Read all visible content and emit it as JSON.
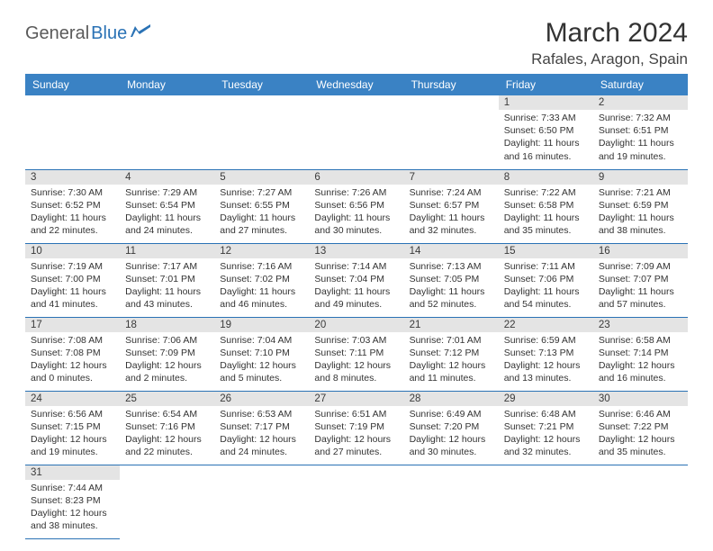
{
  "logo": {
    "text1": "General",
    "text2": "Blue"
  },
  "title": "March 2024",
  "location": "Rafales, Aragon, Spain",
  "colors": {
    "header_bg": "#3a82c4",
    "header_fg": "#ffffff",
    "daynum_bg": "#e4e4e4",
    "row_border": "#2a72b5",
    "logo_gray": "#5a5a5a",
    "logo_blue": "#2a72b5"
  },
  "weekdays": [
    "Sunday",
    "Monday",
    "Tuesday",
    "Wednesday",
    "Thursday",
    "Friday",
    "Saturday"
  ],
  "weeks": [
    [
      null,
      null,
      null,
      null,
      null,
      {
        "d": "1",
        "sunrise": "7:33 AM",
        "sunset": "6:50 PM",
        "dayh": 11,
        "daym": 16
      },
      {
        "d": "2",
        "sunrise": "7:32 AM",
        "sunset": "6:51 PM",
        "dayh": 11,
        "daym": 19
      }
    ],
    [
      {
        "d": "3",
        "sunrise": "7:30 AM",
        "sunset": "6:52 PM",
        "dayh": 11,
        "daym": 22
      },
      {
        "d": "4",
        "sunrise": "7:29 AM",
        "sunset": "6:54 PM",
        "dayh": 11,
        "daym": 24
      },
      {
        "d": "5",
        "sunrise": "7:27 AM",
        "sunset": "6:55 PM",
        "dayh": 11,
        "daym": 27
      },
      {
        "d": "6",
        "sunrise": "7:26 AM",
        "sunset": "6:56 PM",
        "dayh": 11,
        "daym": 30
      },
      {
        "d": "7",
        "sunrise": "7:24 AM",
        "sunset": "6:57 PM",
        "dayh": 11,
        "daym": 32
      },
      {
        "d": "8",
        "sunrise": "7:22 AM",
        "sunset": "6:58 PM",
        "dayh": 11,
        "daym": 35
      },
      {
        "d": "9",
        "sunrise": "7:21 AM",
        "sunset": "6:59 PM",
        "dayh": 11,
        "daym": 38
      }
    ],
    [
      {
        "d": "10",
        "sunrise": "7:19 AM",
        "sunset": "7:00 PM",
        "dayh": 11,
        "daym": 41
      },
      {
        "d": "11",
        "sunrise": "7:17 AM",
        "sunset": "7:01 PM",
        "dayh": 11,
        "daym": 43
      },
      {
        "d": "12",
        "sunrise": "7:16 AM",
        "sunset": "7:02 PM",
        "dayh": 11,
        "daym": 46
      },
      {
        "d": "13",
        "sunrise": "7:14 AM",
        "sunset": "7:04 PM",
        "dayh": 11,
        "daym": 49
      },
      {
        "d": "14",
        "sunrise": "7:13 AM",
        "sunset": "7:05 PM",
        "dayh": 11,
        "daym": 52
      },
      {
        "d": "15",
        "sunrise": "7:11 AM",
        "sunset": "7:06 PM",
        "dayh": 11,
        "daym": 54
      },
      {
        "d": "16",
        "sunrise": "7:09 AM",
        "sunset": "7:07 PM",
        "dayh": 11,
        "daym": 57
      }
    ],
    [
      {
        "d": "17",
        "sunrise": "7:08 AM",
        "sunset": "7:08 PM",
        "dayh": 12,
        "daym": 0
      },
      {
        "d": "18",
        "sunrise": "7:06 AM",
        "sunset": "7:09 PM",
        "dayh": 12,
        "daym": 2
      },
      {
        "d": "19",
        "sunrise": "7:04 AM",
        "sunset": "7:10 PM",
        "dayh": 12,
        "daym": 5
      },
      {
        "d": "20",
        "sunrise": "7:03 AM",
        "sunset": "7:11 PM",
        "dayh": 12,
        "daym": 8
      },
      {
        "d": "21",
        "sunrise": "7:01 AM",
        "sunset": "7:12 PM",
        "dayh": 12,
        "daym": 11
      },
      {
        "d": "22",
        "sunrise": "6:59 AM",
        "sunset": "7:13 PM",
        "dayh": 12,
        "daym": 13
      },
      {
        "d": "23",
        "sunrise": "6:58 AM",
        "sunset": "7:14 PM",
        "dayh": 12,
        "daym": 16
      }
    ],
    [
      {
        "d": "24",
        "sunrise": "6:56 AM",
        "sunset": "7:15 PM",
        "dayh": 12,
        "daym": 19
      },
      {
        "d": "25",
        "sunrise": "6:54 AM",
        "sunset": "7:16 PM",
        "dayh": 12,
        "daym": 22
      },
      {
        "d": "26",
        "sunrise": "6:53 AM",
        "sunset": "7:17 PM",
        "dayh": 12,
        "daym": 24
      },
      {
        "d": "27",
        "sunrise": "6:51 AM",
        "sunset": "7:19 PM",
        "dayh": 12,
        "daym": 27
      },
      {
        "d": "28",
        "sunrise": "6:49 AM",
        "sunset": "7:20 PM",
        "dayh": 12,
        "daym": 30
      },
      {
        "d": "29",
        "sunrise": "6:48 AM",
        "sunset": "7:21 PM",
        "dayh": 12,
        "daym": 32
      },
      {
        "d": "30",
        "sunrise": "6:46 AM",
        "sunset": "7:22 PM",
        "dayh": 12,
        "daym": 35
      }
    ],
    [
      {
        "d": "31",
        "sunrise": "7:44 AM",
        "sunset": "8:23 PM",
        "dayh": 12,
        "daym": 38
      },
      null,
      null,
      null,
      null,
      null,
      null
    ]
  ],
  "labels": {
    "sunrise": "Sunrise:",
    "sunset": "Sunset:",
    "daylight": "Daylight:",
    "hours": "hours",
    "and": "and",
    "minutes": "minutes."
  }
}
